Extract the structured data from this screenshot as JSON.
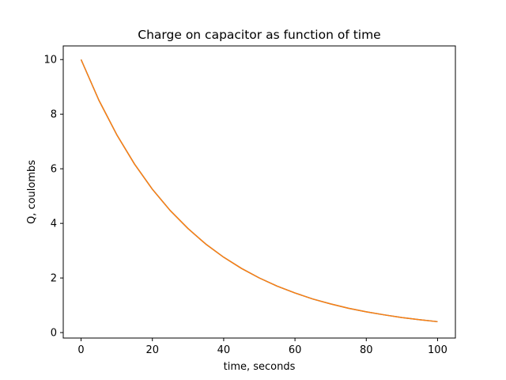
{
  "chart_data": {
    "type": "line",
    "title": "Charge on capacitor as function of time",
    "xlabel": "time, seconds",
    "ylabel": "Q, coulombs",
    "xlim": [
      -5,
      105
    ],
    "ylim": [
      -0.2,
      10.5
    ],
    "xticks": [
      0,
      20,
      40,
      60,
      80,
      100
    ],
    "yticks": [
      0,
      2,
      4,
      6,
      8,
      10
    ],
    "grid": false,
    "series": [
      {
        "color": "#1f77b4",
        "x": [
          0,
          5,
          10,
          15,
          20,
          25,
          30,
          35,
          40,
          45,
          50,
          55,
          60,
          65,
          70,
          75,
          80,
          85,
          90,
          95,
          100
        ],
        "y": [
          10.0,
          8.51,
          7.25,
          6.17,
          5.25,
          4.47,
          3.81,
          3.24,
          2.76,
          2.35,
          2.0,
          1.7,
          1.45,
          1.23,
          1.05,
          0.89,
          0.76,
          0.65,
          0.55,
          0.47,
          0.4
        ]
      },
      {
        "color": "#ff7f0e",
        "x": [
          0,
          5,
          10,
          15,
          20,
          25,
          30,
          35,
          40,
          45,
          50,
          55,
          60,
          65,
          70,
          75,
          80,
          85,
          90,
          95,
          100
        ],
        "y": [
          10.0,
          8.51,
          7.25,
          6.17,
          5.25,
          4.47,
          3.81,
          3.24,
          2.76,
          2.35,
          2.0,
          1.7,
          1.45,
          1.23,
          1.05,
          0.89,
          0.76,
          0.65,
          0.55,
          0.47,
          0.4
        ]
      }
    ]
  }
}
